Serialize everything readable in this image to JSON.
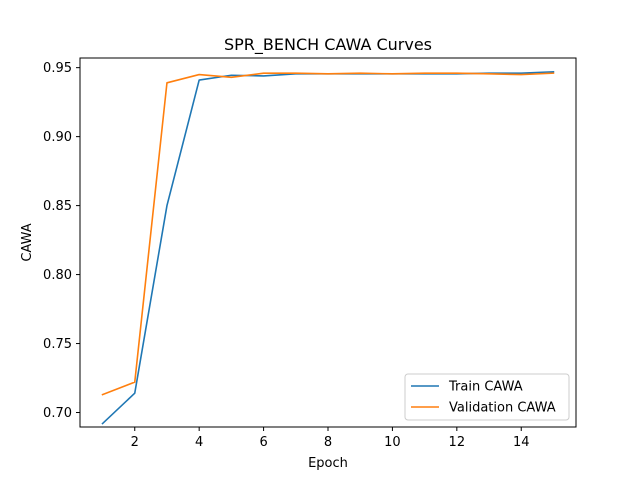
{
  "chart_data": {
    "type": "line",
    "title": "SPR_BENCH CAWA Curves",
    "xlabel": "Epoch",
    "ylabel": "CAWA",
    "xlim": [
      0.3,
      15.7
    ],
    "ylim": [
      0.6895,
      0.957
    ],
    "xticks": [
      2,
      4,
      6,
      8,
      10,
      12,
      14
    ],
    "yticks": [
      0.7,
      0.75,
      0.8,
      0.85,
      0.9,
      0.95
    ],
    "grid": false,
    "legend_position": "lower-right",
    "x": [
      1,
      2,
      3,
      4,
      5,
      6,
      7,
      8,
      9,
      10,
      11,
      12,
      13,
      14,
      15
    ],
    "series": [
      {
        "name": "Train CAWA",
        "color": "#1f77b4",
        "values": [
          0.692,
          0.714,
          0.85,
          0.941,
          0.9445,
          0.944,
          0.9455,
          0.9455,
          0.9455,
          0.9455,
          0.9455,
          0.9455,
          0.946,
          0.946,
          0.947
        ]
      },
      {
        "name": "Validation CAWA",
        "color": "#ff7f0e",
        "values": [
          0.713,
          0.722,
          0.939,
          0.945,
          0.943,
          0.946,
          0.946,
          0.9455,
          0.946,
          0.9455,
          0.946,
          0.946,
          0.9455,
          0.945,
          0.946
        ]
      }
    ]
  }
}
